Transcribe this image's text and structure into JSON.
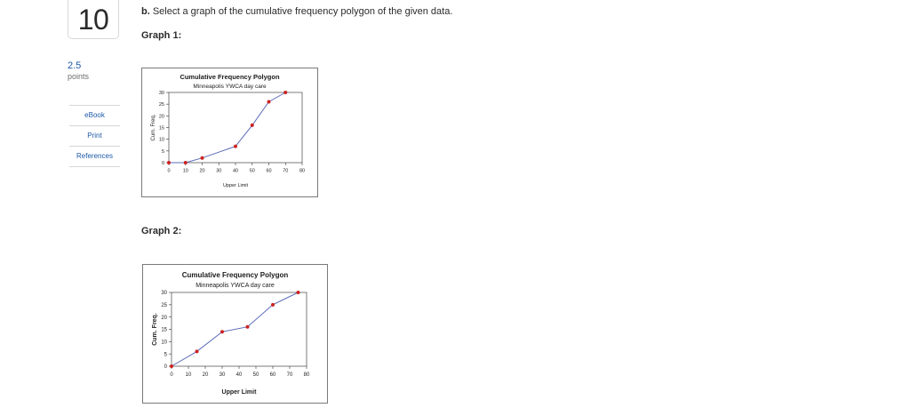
{
  "question": {
    "number": "10",
    "points_value": "2.5",
    "points_label": "points",
    "prompt_bold": "b.",
    "prompt_text": " Select a graph of the cumulative frequency polygon of the given data."
  },
  "side_links": [
    {
      "label": "eBook"
    },
    {
      "label": "Print"
    },
    {
      "label": "References"
    }
  ],
  "graphs": [
    {
      "label": "Graph 1:"
    },
    {
      "label": "Graph 2:"
    }
  ],
  "colors": {
    "link": "#1d59a8",
    "line": "#5b6bb8",
    "marker": "#cc2222",
    "plot_bg": "#ffffff",
    "frame": "#7a7a7a"
  },
  "chart_data": [
    {
      "type": "line",
      "title": "Cumulative Frequency Polygon",
      "subtitle": "Minneapolis YWCA day care",
      "xlabel": "Upper Limit",
      "ylabel": "Cum. Freq.",
      "x": [
        0,
        10,
        20,
        40,
        50,
        60,
        70
      ],
      "y": [
        0,
        0,
        2,
        7,
        16,
        26,
        30
      ],
      "xticks": [
        "0",
        "10",
        "20",
        "30",
        "40",
        "50",
        "60",
        "70",
        "80"
      ],
      "yticks": [
        "0",
        "5",
        "10",
        "15",
        "20",
        "25",
        "30"
      ],
      "xlim": [
        0,
        80
      ],
      "ylim": [
        0,
        30
      ],
      "grid": false,
      "legend": "none"
    },
    {
      "type": "line",
      "title": "Cumulative Frequency Polygon",
      "subtitle": "Minneapolis YWCA day care",
      "xlabel": "Upper Limit",
      "ylabel": "Cum. Freq.",
      "x": [
        0,
        15,
        30,
        45,
        60,
        75
      ],
      "y": [
        0,
        6,
        14,
        16,
        25,
        30
      ],
      "xticks": [
        "0",
        "10",
        "20",
        "30",
        "40",
        "50",
        "60",
        "70",
        "80"
      ],
      "yticks": [
        "0",
        "5",
        "10",
        "15",
        "20",
        "25",
        "30"
      ],
      "xlim": [
        0,
        80
      ],
      "ylim": [
        0,
        30
      ],
      "grid": false,
      "legend": "none"
    }
  ]
}
